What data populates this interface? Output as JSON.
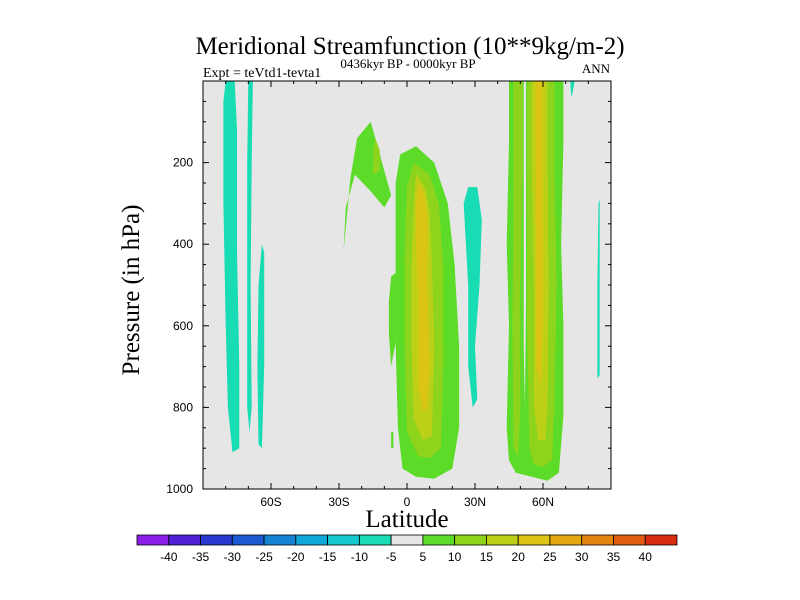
{
  "chart_data": {
    "type": "contour",
    "title": "Meridional Streamfunction (10**9kg/m-2)",
    "subtitle": "0436kyr BP - 0000kyr BP",
    "left_string": "Expt = teVtd1-tevta1",
    "right_string": "ANN",
    "xlabel": "Latitude",
    "ylabel": "Pressure (in hPa)",
    "xlim": [
      -90,
      90
    ],
    "ylim": [
      1000,
      0
    ],
    "x_ticks": [
      {
        "value": -60,
        "label": "60S"
      },
      {
        "value": -30,
        "label": "30S"
      },
      {
        "value": 0,
        "label": "0"
      },
      {
        "value": 30,
        "label": "30N"
      },
      {
        "value": 60,
        "label": "60N"
      }
    ],
    "y_ticks": [
      {
        "value": 200,
        "label": "200"
      },
      {
        "value": 400,
        "label": "400"
      },
      {
        "value": 600,
        "label": "600"
      },
      {
        "value": 800,
        "label": "800"
      },
      {
        "value": 1000,
        "label": "1000"
      }
    ],
    "colorbar": {
      "levels": [
        -40,
        -35,
        -30,
        -25,
        -20,
        -15,
        -10,
        -5,
        5,
        10,
        15,
        20,
        25,
        30,
        35,
        40
      ],
      "colors": [
        "#8a1ee6",
        "#5020d8",
        "#2838d0",
        "#1c5ad2",
        "#1482d0",
        "#10a8d8",
        "#18c8d0",
        "#18dcb4",
        "#e6e6e6",
        "#5cdc28",
        "#8ed41c",
        "#bcd018",
        "#dcc414",
        "#e4a810",
        "#e48410",
        "#e05c10",
        "#d82c10"
      ]
    },
    "regions": [
      {
        "name": "sh-polar-neg",
        "value": -7.5,
        "points": [
          [
            -80,
            0
          ],
          [
            -76,
            0
          ],
          [
            -75,
            120
          ],
          [
            -75,
            420
          ],
          [
            -74,
            700
          ],
          [
            -74,
            900
          ],
          [
            -77,
            910
          ],
          [
            -79,
            800
          ],
          [
            -80,
            600
          ],
          [
            -81,
            300
          ],
          [
            -81,
            50
          ]
        ]
      },
      {
        "name": "sh-65s-neg",
        "value": -7.5,
        "points": [
          [
            -70,
            0
          ],
          [
            -68,
            0
          ],
          [
            -68.5,
            200
          ],
          [
            -69,
            500
          ],
          [
            -68.5,
            800
          ],
          [
            -69.5,
            860
          ],
          [
            -70.5,
            800
          ],
          [
            -70.5,
            500
          ],
          [
            -70.5,
            200
          ]
        ]
      },
      {
        "name": "sh-65s-neg-2",
        "value": -7.5,
        "points": [
          [
            -64,
            400
          ],
          [
            -63,
            420
          ],
          [
            -63,
            700
          ],
          [
            -64,
            900
          ],
          [
            -65.5,
            890
          ],
          [
            -66,
            700
          ],
          [
            -65.5,
            500
          ]
        ]
      },
      {
        "name": "upper-cell-pos",
        "value": 7.5,
        "points": [
          [
            -28,
            420
          ],
          [
            -26,
            300
          ],
          [
            -25,
            240
          ],
          [
            -22,
            140
          ],
          [
            -16,
            100
          ],
          [
            -13,
            160
          ],
          [
            -7,
            280
          ],
          [
            -10,
            310
          ],
          [
            -16,
            270
          ],
          [
            -23,
            230
          ],
          [
            -27,
            310
          ]
        ]
      },
      {
        "name": "upper-cell-15",
        "value": 12.5,
        "points": [
          [
            -14,
            140
          ],
          [
            -12,
            170
          ],
          [
            -12,
            220
          ],
          [
            -15,
            230
          ],
          [
            -15,
            180
          ]
        ]
      },
      {
        "name": "tropics-pos",
        "value": 7.5,
        "points": [
          [
            -3,
            180
          ],
          [
            4,
            160
          ],
          [
            12,
            200
          ],
          [
            18,
            300
          ],
          [
            21,
            450
          ],
          [
            23,
            650
          ],
          [
            23,
            850
          ],
          [
            20,
            950
          ],
          [
            12,
            975
          ],
          [
            4,
            970
          ],
          [
            -2,
            950
          ],
          [
            -4,
            850
          ],
          [
            -5,
            650
          ],
          [
            -5,
            450
          ],
          [
            -5,
            250
          ]
        ]
      },
      {
        "name": "tropics-15",
        "value": 12.5,
        "points": [
          [
            3,
            200
          ],
          [
            10,
            230
          ],
          [
            14,
            300
          ],
          [
            16,
            450
          ],
          [
            16,
            700
          ],
          [
            15,
            900
          ],
          [
            10,
            925
          ],
          [
            5,
            920
          ],
          [
            0,
            860
          ],
          [
            -1,
            650
          ],
          [
            -1,
            420
          ],
          [
            0,
            260
          ]
        ]
      },
      {
        "name": "tropics-20",
        "value": 17.5,
        "points": [
          [
            4,
            230
          ],
          [
            8,
            260
          ],
          [
            10,
            320
          ],
          [
            11,
            450
          ],
          [
            12,
            650
          ],
          [
            11,
            870
          ],
          [
            7,
            880
          ],
          [
            3,
            830
          ],
          [
            2,
            650
          ],
          [
            2,
            450
          ],
          [
            3,
            300
          ]
        ]
      },
      {
        "name": "tropics-25",
        "value": 22.5,
        "points": [
          [
            5,
            250
          ],
          [
            8,
            280
          ],
          [
            9,
            350
          ],
          [
            9,
            500
          ],
          [
            10,
            700
          ],
          [
            9,
            800
          ],
          [
            7,
            810
          ],
          [
            5,
            750
          ],
          [
            5,
            550
          ],
          [
            4,
            400
          ],
          [
            4,
            300
          ]
        ]
      },
      {
        "name": "tropics-left-pos",
        "value": 7.5,
        "points": [
          [
            -8,
            540
          ],
          [
            -7,
            480
          ],
          [
            -5,
            470
          ],
          [
            -4,
            520
          ],
          [
            -5,
            640
          ],
          [
            -7,
            700
          ],
          [
            -8,
            620
          ]
        ]
      },
      {
        "name": "tropics-small-pos",
        "value": 7.5,
        "points": [
          [
            -7,
            860
          ],
          [
            -6,
            860
          ],
          [
            -6,
            900
          ],
          [
            -7,
            900
          ]
        ]
      },
      {
        "name": "nh-25n-neg",
        "value": -7.5,
        "points": [
          [
            25,
            300
          ],
          [
            27,
            260
          ],
          [
            31,
            260
          ],
          [
            33,
            340
          ],
          [
            32,
            500
          ],
          [
            30,
            650
          ],
          [
            31,
            780
          ],
          [
            29,
            800
          ],
          [
            27,
            700
          ],
          [
            27,
            500
          ],
          [
            26,
            400
          ]
        ]
      },
      {
        "name": "nh-midlat-pos",
        "value": 7.5,
        "points": [
          [
            45,
            0
          ],
          [
            69,
            0
          ],
          [
            69,
            150
          ],
          [
            68,
            400
          ],
          [
            69,
            600
          ],
          [
            69,
            820
          ],
          [
            67,
            960
          ],
          [
            62,
            980
          ],
          [
            55,
            970
          ],
          [
            48,
            960
          ],
          [
            45,
            930
          ],
          [
            44,
            850
          ],
          [
            45,
            600
          ],
          [
            44,
            400
          ],
          [
            45,
            150
          ]
        ]
      },
      {
        "name": "nh-midlat-15",
        "value": 12.5,
        "points": [
          [
            47,
            0
          ],
          [
            51,
            0
          ],
          [
            51,
            200
          ],
          [
            50,
            500
          ],
          [
            50,
            800
          ],
          [
            49,
            920
          ],
          [
            47,
            900
          ],
          [
            46.5,
            600
          ],
          [
            47,
            300
          ]
        ]
      },
      {
        "name": "nh-midlat-15-b",
        "value": 12.5,
        "points": [
          [
            53,
            0
          ],
          [
            65,
            0
          ],
          [
            65,
            200
          ],
          [
            66,
            500
          ],
          [
            65,
            800
          ],
          [
            64,
            930
          ],
          [
            60,
            945
          ],
          [
            56,
            940
          ],
          [
            54,
            900
          ],
          [
            53,
            600
          ],
          [
            53,
            300
          ]
        ]
      },
      {
        "name": "nh-midlat-20",
        "value": 17.5,
        "points": [
          [
            55,
            0
          ],
          [
            62,
            0
          ],
          [
            62,
            200
          ],
          [
            62.5,
            500
          ],
          [
            62,
            800
          ],
          [
            61,
            880
          ],
          [
            58,
            880
          ],
          [
            56,
            800
          ],
          [
            56,
            500
          ],
          [
            55,
            200
          ]
        ]
      },
      {
        "name": "nh-midlat-25",
        "value": 22.5,
        "points": [
          [
            56.5,
            0
          ],
          [
            60,
            0
          ],
          [
            60,
            300
          ],
          [
            60,
            600
          ],
          [
            59,
            750
          ],
          [
            57,
            700
          ],
          [
            57,
            400
          ]
        ]
      },
      {
        "name": "nh-midlat-gap",
        "value": 0,
        "points": [
          [
            51.5,
            0
          ],
          [
            52.5,
            0
          ],
          [
            52.5,
            550
          ],
          [
            52,
            800
          ],
          [
            51.5,
            650
          ]
        ]
      },
      {
        "name": "nh-73n-neg",
        "value": -7.5,
        "points": [
          [
            72,
            0
          ],
          [
            74,
            0
          ],
          [
            73,
            30
          ],
          [
            72.5,
            40
          ]
        ]
      },
      {
        "name": "nh-84n-neg",
        "value": -7.5,
        "points": [
          [
            84.5,
            300
          ],
          [
            85,
            290
          ],
          [
            85,
            720
          ],
          [
            84,
            730
          ],
          [
            84,
            500
          ]
        ]
      }
    ]
  }
}
